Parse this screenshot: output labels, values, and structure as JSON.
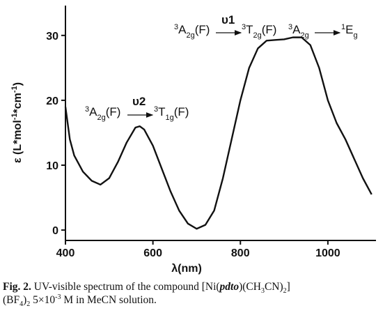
{
  "chart_data": {
    "type": "line",
    "x": [
      400,
      410,
      420,
      440,
      460,
      480,
      500,
      520,
      540,
      560,
      570,
      580,
      600,
      620,
      640,
      660,
      680,
      700,
      720,
      740,
      760,
      780,
      800,
      820,
      840,
      860,
      880,
      900,
      920,
      940,
      960,
      980,
      1000,
      1020,
      1040,
      1060,
      1080,
      1100
    ],
    "series": [
      {
        "color": "#111111",
        "values": [
          19,
          14,
          11.5,
          9,
          7.6,
          7,
          8,
          10.5,
          13.5,
          15.8,
          16,
          15.5,
          13,
          9.5,
          6,
          3,
          1,
          0.2,
          0.8,
          3,
          8,
          14,
          20,
          25,
          28,
          29.2,
          29.3,
          29.4,
          29.7,
          29.7,
          28.5,
          25,
          20,
          16.5,
          14,
          11,
          8,
          5.5
        ]
      }
    ],
    "xlim": [
      400,
      1110
    ],
    "xticks": [
      400,
      600,
      800,
      1000
    ],
    "ylim": [
      -1.6,
      34.6
    ],
    "yticks": [
      0,
      10,
      20,
      30
    ],
    "x_label": "λ(nm)",
    "y_label": [
      "ε (L*mol",
      "-1",
      "*cm",
      "-1",
      ")"
    ],
    "annotations": [
      [
        "3",
        "A",
        "2g",
        "(F)",
        "υ",
        "1",
        "3",
        "T",
        "2g",
        "(F)",
        "3",
        "A",
        "2g",
        "1",
        "E",
        "g"
      ],
      [
        "3",
        "A",
        "2g",
        "(F)",
        "υ",
        "2",
        "3",
        "T",
        "1g",
        "(F)"
      ]
    ]
  },
  "caption": {
    "label": "Fig. 2.",
    "parts": [
      " UV-visible spectrum of the compound [Ni(",
      "pdto",
      ")(CH",
      "3",
      "CN)",
      "2",
      "]",
      "(BF",
      "4",
      ")",
      "2",
      " 5×10",
      "-3",
      " M in MeCN solution."
    ]
  }
}
